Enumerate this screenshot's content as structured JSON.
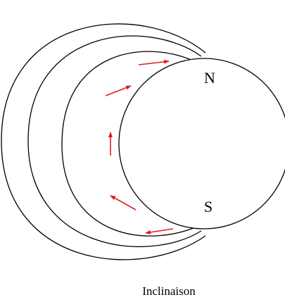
{
  "labels": {
    "north": "N",
    "south": "S"
  },
  "caption": "Inclinaison"
}
